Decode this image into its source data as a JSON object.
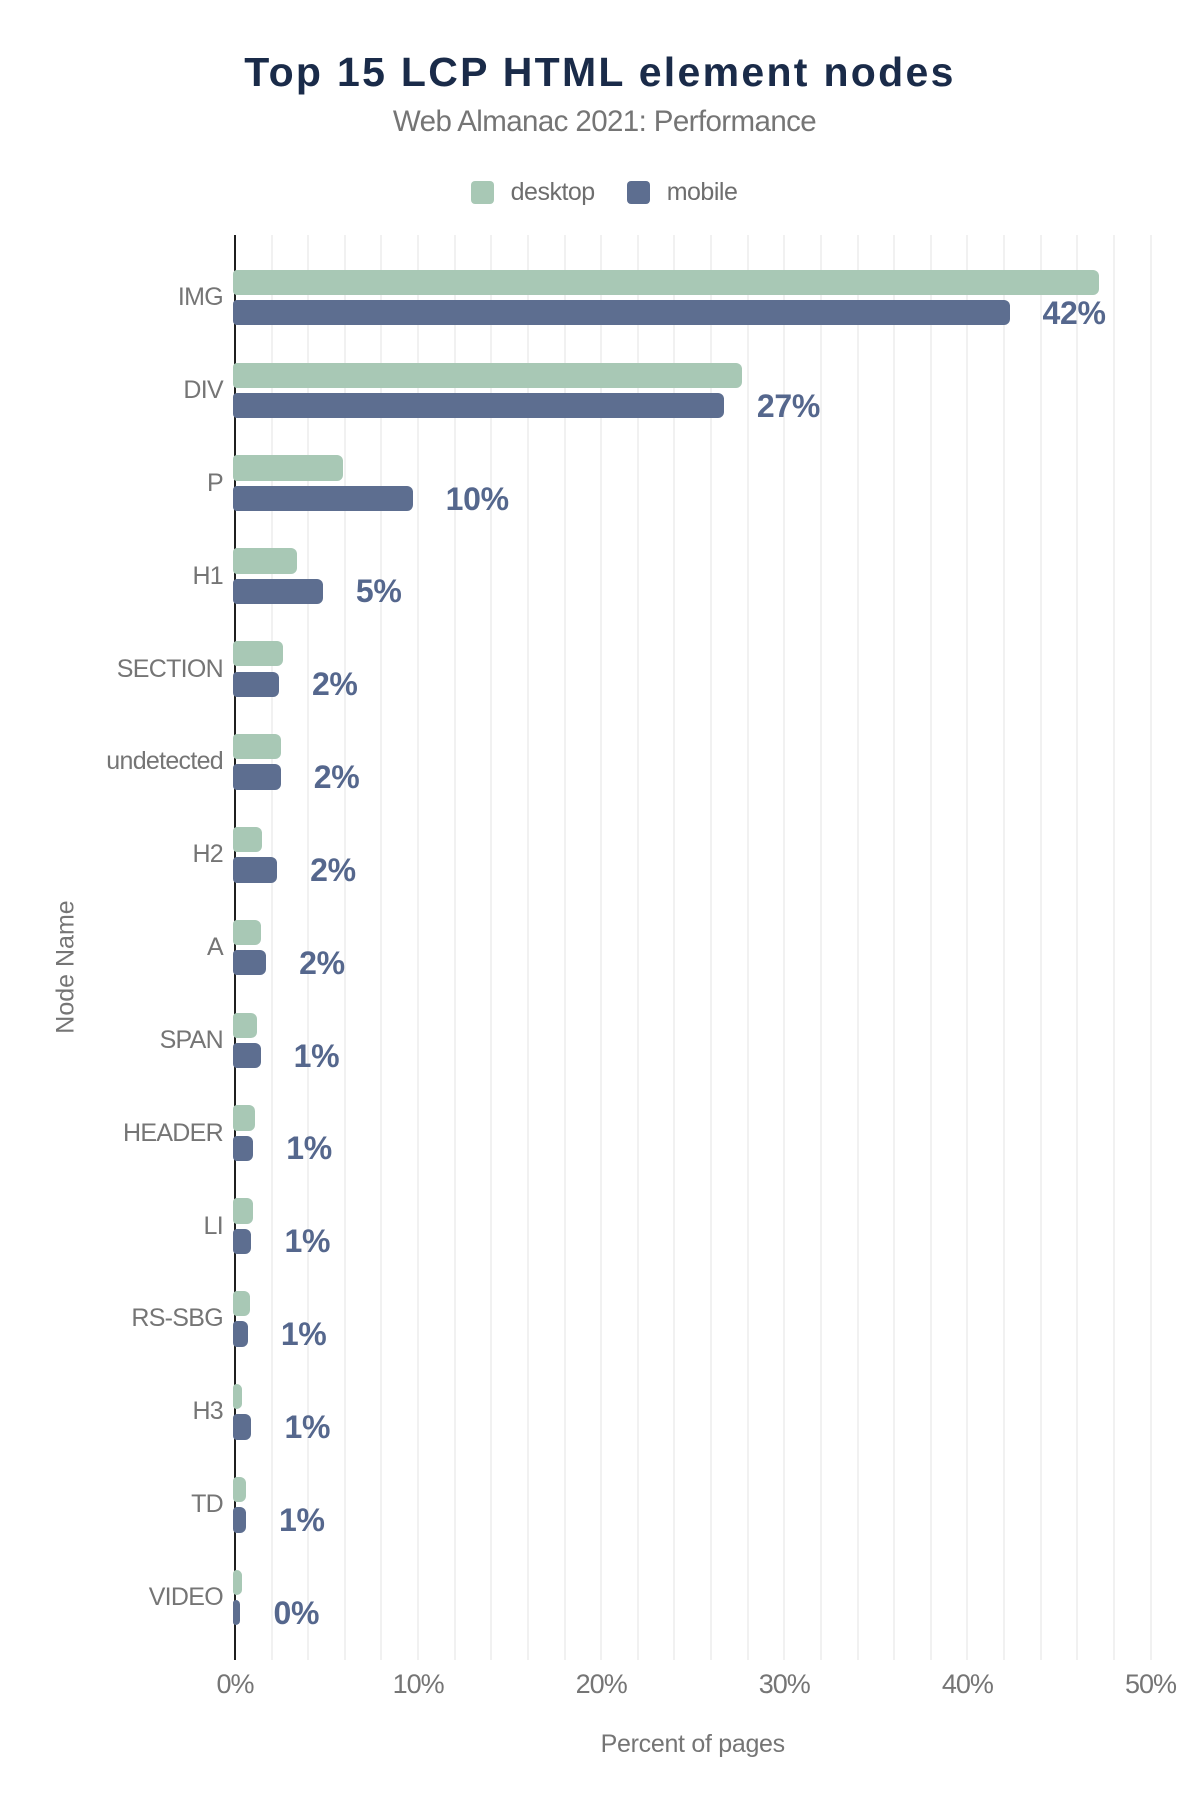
{
  "chart_data": {
    "type": "bar",
    "orientation": "horizontal",
    "title": "Top 15 LCP HTML element nodes",
    "subtitle": "Web Almanac 2021: Performance",
    "xlabel": "Percent of pages",
    "ylabel": "Node Name",
    "categories": [
      "IMG",
      "DIV",
      "P",
      "H1",
      "SECTION",
      "undetected",
      "H2",
      "A",
      "SPAN",
      "HEADER",
      "LI",
      "RS-SBG",
      "H3",
      "TD",
      "VIDEO"
    ],
    "series": [
      {
        "name": "desktop",
        "color": "#a8c8b5",
        "values": [
          47.2,
          27.7,
          5.9,
          3.4,
          2.6,
          2.5,
          1.5,
          1.4,
          1.2,
          1.1,
          1.0,
          0.8,
          0.4,
          0.6,
          0.4
        ]
      },
      {
        "name": "mobile",
        "color": "#5d6e90",
        "values": [
          42.3,
          26.7,
          9.7,
          4.8,
          2.4,
          2.5,
          2.3,
          1.7,
          1.4,
          1.0,
          0.9,
          0.7,
          0.9,
          0.6,
          0.3
        ]
      }
    ],
    "data_labels": [
      "42%",
      "27%",
      "10%",
      "5%",
      "2%",
      "2%",
      "2%",
      "2%",
      "1%",
      "1%",
      "1%",
      "1%",
      "1%",
      "1%",
      "0%"
    ],
    "x_ticks": [
      "0%",
      "10%",
      "20%",
      "30%",
      "40%",
      "50%"
    ],
    "x_tick_values": [
      0,
      10,
      20,
      30,
      40,
      50
    ],
    "xlim": [
      0,
      50
    ],
    "grid": {
      "visible": true,
      "minor_step_percent": 2,
      "color": "#f1f1f1"
    },
    "legend_position": "top",
    "colors": {
      "title": "#1a2b49",
      "axis_text": "#757575",
      "axis_line": "#1f1f1f",
      "value_label": "#55678d",
      "background": "#ffffff"
    }
  }
}
